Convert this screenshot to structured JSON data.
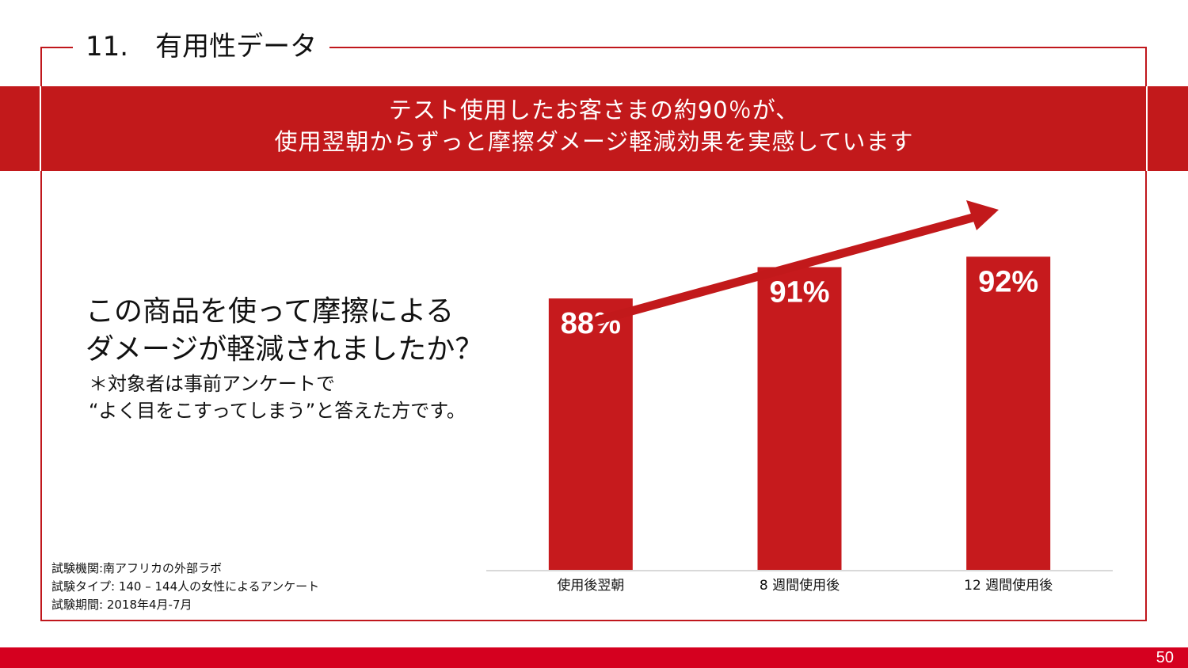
{
  "slide": {
    "section_title": "11.　有用性データ",
    "banner_line1": "テスト使用したお客さまの約90％が、",
    "banner_line2": "使用翌朝からずっと摩擦ダメージ軽減効果を実感しています",
    "question_line1": "この商品を使って摩擦による",
    "question_line2": "ダメージが軽減されましたか？",
    "note_line1": "＊対象者は事前アンケートで",
    "note_line2": "“よく目をこすってしまう”と答えた方です。",
    "source_line1": "試験機関:南アフリカの外部ラボ",
    "source_line2": "試験タイプ: 140 – 144人の女性によるアンケート",
    "source_line3": "試験期間: 2018年4月-7月",
    "page_number": "50"
  },
  "colors": {
    "accent": "#c2191b",
    "bar": "#c61a1d",
    "footer": "#d5001f",
    "axis": "#d9d9d9"
  },
  "chart_data": {
    "type": "bar",
    "categories": [
      "使用後翌朝",
      "8 週間使用後",
      "12 週間使用後"
    ],
    "values": [
      88,
      91,
      92
    ],
    "data_labels": [
      "88%",
      "91%",
      "92%"
    ],
    "unit": "%",
    "ylim": [
      62,
      99
    ],
    "grid": false,
    "legend": "none",
    "trend_arrow": true
  }
}
